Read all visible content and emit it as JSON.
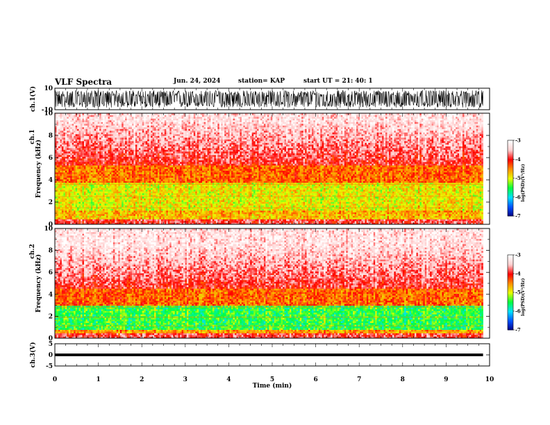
{
  "header": {
    "title": "VLF Spectra",
    "date": "Jun. 24, 2024",
    "station": "station= KAP",
    "start": "start  UT  =   21: 40: 1"
  },
  "chart_data": [
    {
      "type": "line",
      "title": "",
      "ylabel": "ch.1(V)",
      "ylim": [
        -10,
        10
      ],
      "yticks": [
        10,
        -10
      ],
      "ytick_labels": [
        "10",
        "-10"
      ],
      "xlim": [
        0,
        10
      ],
      "x_end": 9.85,
      "description_of_data": "dense waveform oscillating between about -8 and +8 V"
    },
    {
      "type": "heatmap",
      "ylabel": "Frequency (kHz)",
      "channel_label": "ch.1",
      "ylim": [
        0,
        10
      ],
      "yticks": [
        0,
        2,
        4,
        6,
        8,
        10
      ],
      "ytick_labels": [
        "0",
        "2",
        "4",
        "6",
        "8",
        "10"
      ],
      "xlim": [
        0,
        10
      ],
      "x_end": 9.85,
      "dominant_band_khz": [
        1.2,
        3.8
      ],
      "colorbar": {
        "label": "log(PSD)(V²/Hz)",
        "range": [
          -7,
          -3
        ],
        "ticks": [
          -3,
          -4,
          -5,
          -6,
          -7
        ],
        "tick_labels": [
          "-3",
          "-4",
          "-5",
          "-6",
          "-7"
        ]
      }
    },
    {
      "type": "heatmap",
      "ylabel": "Frequency (kHz)",
      "channel_label": "ch.2",
      "ylim": [
        0,
        10
      ],
      "yticks": [
        0,
        2,
        4,
        6,
        8,
        10
      ],
      "ytick_labels": [
        "0",
        "2",
        "4",
        "6",
        "8",
        "10"
      ],
      "xlim": [
        0,
        10
      ],
      "x_end": 9.85,
      "dominant_band_khz": [
        0.8,
        3.0
      ],
      "colorbar": {
        "label": "log(PSD)(V²/Hz)",
        "range": [
          -7,
          -3
        ],
        "ticks": [
          -3,
          -4,
          -5,
          -6,
          -7
        ],
        "tick_labels": [
          "-3",
          "-4",
          "-5",
          "-6",
          "-7"
        ]
      }
    },
    {
      "type": "line",
      "ylabel": "ch.3(V)",
      "ylim": [
        -5,
        5
      ],
      "yticks": [
        5,
        0,
        -5
      ],
      "ytick_labels": [
        "5",
        "0",
        "-5"
      ],
      "xlim": [
        0,
        10
      ],
      "x_end": 9.85,
      "level_v": [
        -0.6,
        0.6
      ]
    }
  ],
  "xaxis": {
    "label": "Time  (min)",
    "ticks": [
      0,
      1,
      2,
      3,
      4,
      5,
      6,
      7,
      8,
      9,
      10
    ],
    "tick_labels": [
      "0",
      "1",
      "2",
      "3",
      "4",
      "5",
      "6",
      "7",
      "8",
      "9",
      "10"
    ]
  },
  "colors": {
    "waveform": "#000000",
    "background": "#ffffff",
    "colormap": [
      "#000080",
      "#0050ff",
      "#00e0ff",
      "#00ff40",
      "#e8ff00",
      "#ff9000",
      "#ff0000",
      "#ffd0d0",
      "#ffffff"
    ]
  }
}
